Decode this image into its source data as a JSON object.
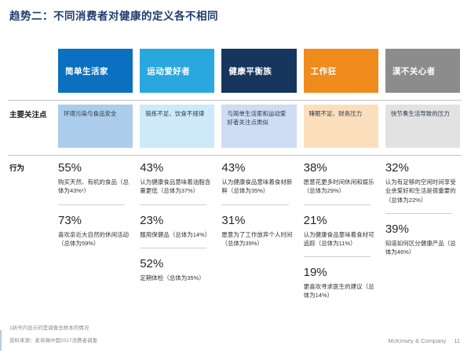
{
  "title": "趋势二：不同消费者对健康的定义各不相同",
  "rows": {
    "focus_label": "主要关注点",
    "behavior_label": "行为"
  },
  "columns": [
    {
      "name": "简单生活家",
      "colors": {
        "header_bg": "#0C70C0",
        "header_text": "#FFFFFF",
        "focus_bg": "#ABCDEB"
      },
      "focus": "环境污染与食品安全",
      "stats": [
        {
          "pct": "55%",
          "desc": "购买天然、有机的食品（总体为43%¹）"
        },
        {
          "pct": "73%",
          "desc": "喜欢亲近大自然的休闲活动（总体为59%）"
        }
      ]
    },
    {
      "name": "运动爱好者",
      "colors": {
        "header_bg": "#29A8E0",
        "header_text": "#FFFFFF",
        "focus_bg": "#CEE9F8"
      },
      "focus": "锻炼不足、饮食不规律",
      "stats": [
        {
          "pct": "43%",
          "desc": "认为健康食品意味着油脂含量更低（总体为37%）"
        },
        {
          "pct": "23%",
          "desc": "服用保健品（总体为14%）"
        },
        {
          "pct": "52%",
          "desc": "定期体检（总体为35%）"
        }
      ]
    },
    {
      "name": "健康平衡族",
      "colors": {
        "header_bg": "#17365D",
        "header_text": "#FFFFFF",
        "focus_bg": "#CEDCF4"
      },
      "focus": "与简单生活家和运动爱好者关注点类似",
      "stats": [
        {
          "pct": "43%",
          "desc": "认为健康食品意味着食材新鲜（总体为35%）"
        },
        {
          "pct": "31%",
          "desc": "愿意为了工作放弃个人时间（总体为39%）"
        }
      ]
    },
    {
      "name": "工作狂",
      "colors": {
        "header_bg": "#F08C1E",
        "header_text": "#FFFFFF",
        "focus_bg": "#FBDFBC"
      },
      "focus": "睡眠不足、财务压力",
      "stats": [
        {
          "pct": "38%",
          "desc": "愿意花更多时间休闲和娱乐（总体为29%）"
        },
        {
          "pct": "21%",
          "desc": "认为健康食品意味着食材可追踪（总体为11%）"
        },
        {
          "pct": "19%",
          "desc": "更喜欢寻求医生的建议（总体为14%）"
        }
      ]
    },
    {
      "name": "漠不关心者",
      "colors": {
        "header_bg": "#8C8C8C",
        "header_text": "#FFFFFF",
        "focus_bg": "#E2E2E2"
      },
      "focus": "快节奏生活导致的压力",
      "stats": [
        {
          "pct": "32%",
          "desc": "认为有足够的空闲时间享受业余爱好和生活是很重要的（总体为22%）"
        },
        {
          "pct": "39%",
          "desc": "知道如何区分健康产品（总体为46%）"
        }
      ]
    }
  ],
  "footer": {
    "footnote": "1括号内显示的是调查总样本的情况",
    "source": "资料来源：麦肯锡中国2017消费者调查",
    "brand": "McKinsey & Company",
    "page": "11"
  }
}
